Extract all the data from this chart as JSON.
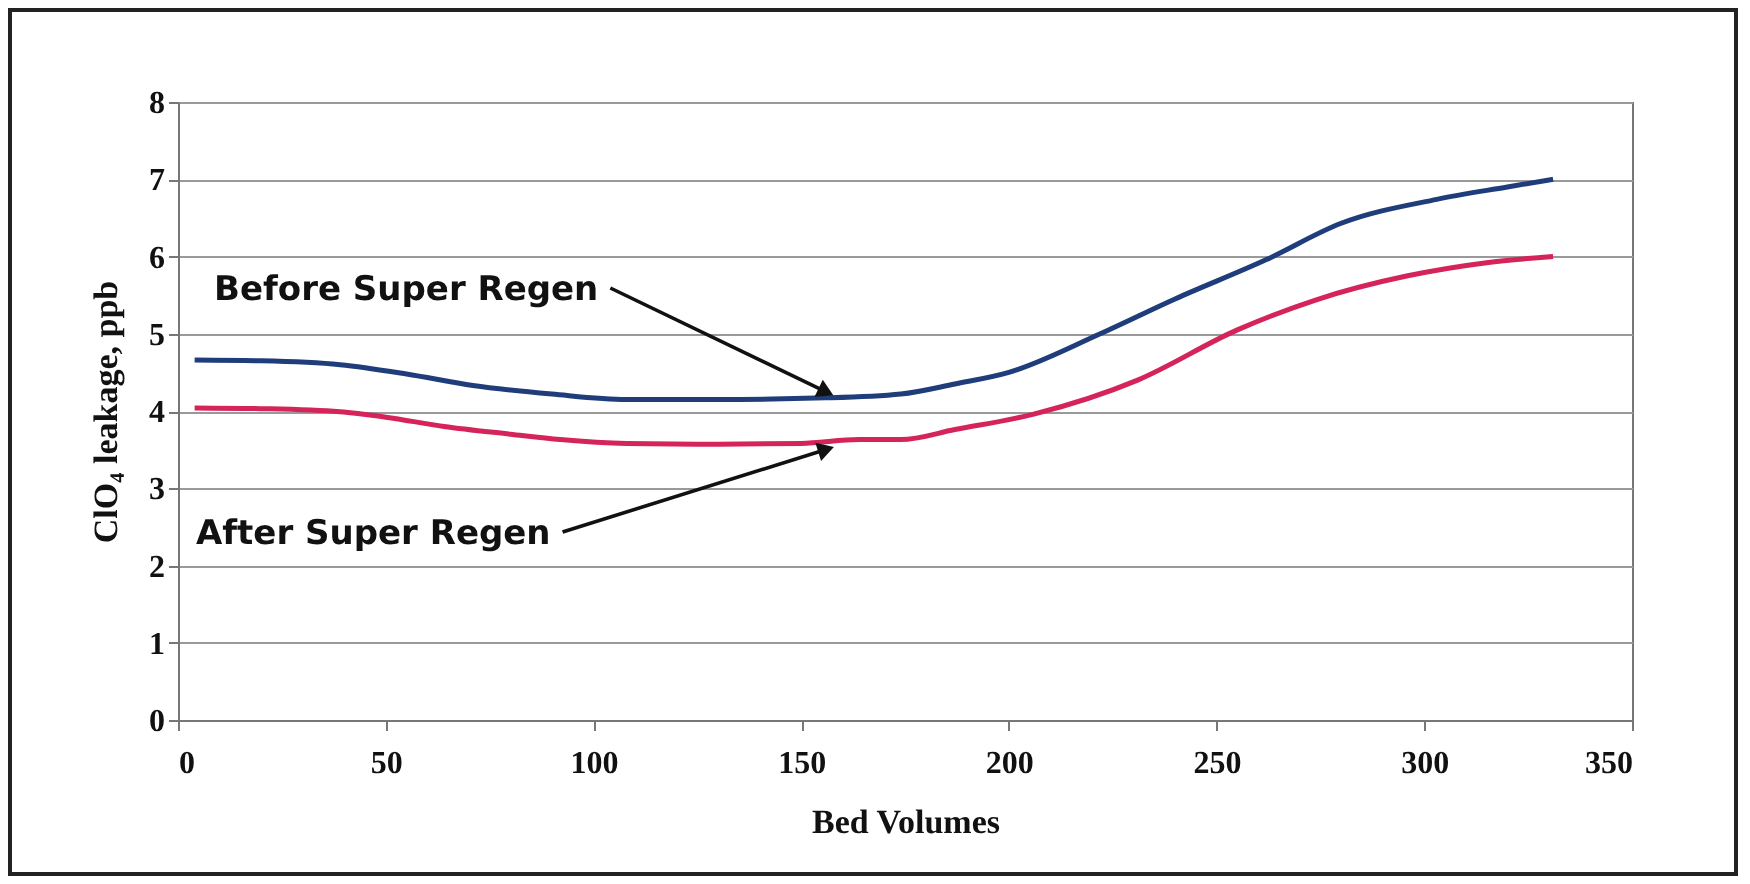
{
  "chart_data": {
    "type": "line",
    "xlabel": "Bed Volumes",
    "ylabel": "ClO₄ leakage, ppb",
    "xlim": [
      0,
      350
    ],
    "xticks": [
      0,
      50,
      100,
      150,
      200,
      250,
      300,
      350
    ],
    "ylim": [
      0,
      8
    ],
    "yticks": [
      0,
      1,
      2,
      3,
      4,
      5,
      6,
      7,
      8
    ],
    "grid": "y",
    "legend": false,
    "marker": "none",
    "line_style": "solid",
    "series": [
      {
        "color": "#1f3d7a",
        "x": [
          4,
          20,
          39,
          55,
          71,
          90,
          108,
          130,
          156,
          174,
          187,
          200,
          222,
          240,
          262,
          280,
          303,
          320,
          331
        ],
        "values": [
          4.66,
          4.65,
          4.6,
          4.48,
          4.33,
          4.22,
          4.15,
          4.15,
          4.17,
          4.22,
          4.35,
          4.5,
          5.0,
          5.45,
          5.96,
          6.43,
          6.74,
          6.9,
          7.0
        ]
      },
      {
        "color": "#d4245a",
        "x": [
          4,
          20,
          39,
          50,
          64,
          80,
          92,
          108,
          130,
          150,
          164,
          174,
          187,
          206,
          231,
          255,
          274,
          296,
          315,
          331
        ],
        "values": [
          4.04,
          4.03,
          3.99,
          3.92,
          3.8,
          3.7,
          3.63,
          3.58,
          3.57,
          3.58,
          3.63,
          3.63,
          3.76,
          3.96,
          4.4,
          5.05,
          5.44,
          5.75,
          5.92,
          6.0
        ]
      }
    ],
    "annotations": [
      {
        "text": "Before Super Regen",
        "x": 156,
        "y": 4.17
      },
      {
        "text": "After Super Regen",
        "x": 156,
        "y": 3.58
      }
    ]
  }
}
